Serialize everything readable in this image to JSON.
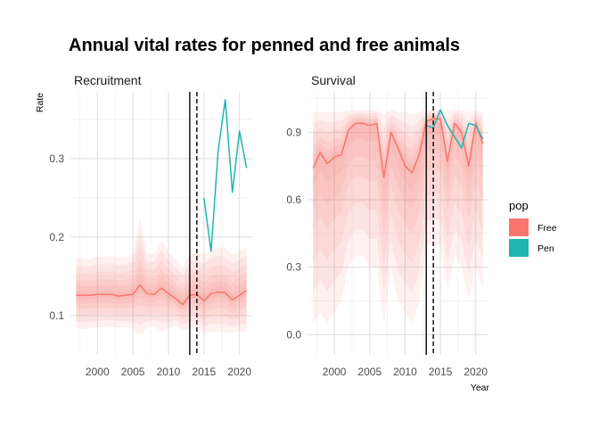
{
  "chart_data": {
    "type": "line",
    "title": "Annual vital rates for penned and free animals",
    "ylabel": "Rate",
    "xlabel": "Year",
    "colors": {
      "Free": "#F8766D",
      "Pen": "#1FB5B0",
      "band": "#F8766D"
    },
    "legend": {
      "title": "pop",
      "position": "right",
      "entries": [
        "Free",
        "Pen"
      ]
    },
    "grid": true,
    "vlines": [
      {
        "x": 2013,
        "style": "solid"
      },
      {
        "x": 2014,
        "style": "dashed"
      }
    ],
    "panels": [
      {
        "name": "Recruitment",
        "xlim": [
          1996.2,
          2021.8
        ],
        "ylim": [
          0.05,
          0.385
        ],
        "xticks": [
          2000,
          2005,
          2010,
          2015,
          2020
        ],
        "yticks": [
          0.1,
          0.2,
          0.3
        ],
        "ytick_labels": [
          "0.1",
          "0.2",
          "0.3"
        ],
        "series": [
          {
            "name": "Free",
            "x": [
              1997,
              1998,
              1999,
              2000,
              2001,
              2002,
              2003,
              2004,
              2005,
              2006,
              2007,
              2008,
              2009,
              2010,
              2011,
              2012,
              2013,
              2014,
              2015,
              2016,
              2017,
              2018,
              2019,
              2020,
              2021
            ],
            "y": [
              0.126,
              0.126,
              0.126,
              0.127,
              0.127,
              0.127,
              0.125,
              0.126,
              0.127,
              0.139,
              0.128,
              0.127,
              0.135,
              0.128,
              0.122,
              0.114,
              0.126,
              0.127,
              0.119,
              0.128,
              0.13,
              0.129,
              0.12,
              0.126,
              0.132
            ],
            "lower": [
              0.085,
              0.083,
              0.084,
              0.085,
              0.085,
              0.086,
              0.085,
              0.085,
              0.083,
              0.075,
              0.084,
              0.086,
              0.08,
              0.083,
              0.087,
              0.082,
              0.084,
              0.086,
              0.078,
              0.08,
              0.08,
              0.079,
              0.078,
              0.08,
              0.079
            ],
            "upper": [
              0.175,
              0.172,
              0.172,
              0.175,
              0.175,
              0.176,
              0.174,
              0.175,
              0.178,
              0.225,
              0.18,
              0.178,
              0.195,
              0.18,
              0.172,
              0.16,
              0.178,
              0.18,
              0.178,
              0.185,
              0.188,
              0.186,
              0.178,
              0.182,
              0.188
            ]
          },
          {
            "name": "Pen",
            "x": [
              2015,
              2016,
              2017,
              2018,
              2019,
              2020,
              2021
            ],
            "y": [
              0.25,
              0.182,
              0.31,
              0.375,
              0.257,
              0.335,
              0.288
            ]
          }
        ]
      },
      {
        "name": "Survival",
        "xlim": [
          1996.2,
          2021.8
        ],
        "ylim": [
          -0.09,
          1.08
        ],
        "xticks": [
          2000,
          2005,
          2010,
          2015,
          2020
        ],
        "yticks": [
          0.0,
          0.3,
          0.6,
          0.9
        ],
        "ytick_labels": [
          "0.0",
          "0.3",
          "0.6",
          "0.9"
        ],
        "series": [
          {
            "name": "Free",
            "x": [
              1997,
              1998,
              1999,
              2000,
              2001,
              2002,
              2003,
              2004,
              2005,
              2006,
              2007,
              2008,
              2009,
              2010,
              2011,
              2012,
              2013,
              2014,
              2015,
              2016,
              2017,
              2018,
              2019,
              2020,
              2021
            ],
            "y": [
              0.74,
              0.81,
              0.76,
              0.79,
              0.8,
              0.91,
              0.94,
              0.94,
              0.93,
              0.94,
              0.7,
              0.9,
              0.83,
              0.75,
              0.72,
              0.8,
              0.95,
              0.96,
              0.96,
              0.77,
              0.94,
              0.9,
              0.75,
              0.94,
              0.85
            ],
            "lower": [
              0.05,
              0.1,
              0.05,
              0.1,
              0.15,
              0.3,
              0.35,
              0.35,
              0.3,
              0.3,
              0.05,
              0.3,
              0.15,
              0.1,
              0.05,
              0.15,
              0.4,
              0.4,
              0.4,
              0.2,
              0.35,
              0.3,
              0.15,
              0.3,
              0.2
            ],
            "upper": [
              0.99,
              0.99,
              0.99,
              0.99,
              0.99,
              1.0,
              1.0,
              1.0,
              1.0,
              1.0,
              0.98,
              1.0,
              0.99,
              0.99,
              0.98,
              0.99,
              1.0,
              1.0,
              1.0,
              0.99,
              1.0,
              1.0,
              0.99,
              1.0,
              0.99
            ]
          },
          {
            "name": "Pen",
            "x": [
              2013,
              2014,
              2015,
              2016,
              2017,
              2018,
              2019,
              2020,
              2021
            ],
            "y": [
              0.93,
              0.92,
              1.0,
              0.93,
              0.88,
              0.83,
              0.94,
              0.93,
              0.87
            ]
          }
        ]
      }
    ]
  }
}
